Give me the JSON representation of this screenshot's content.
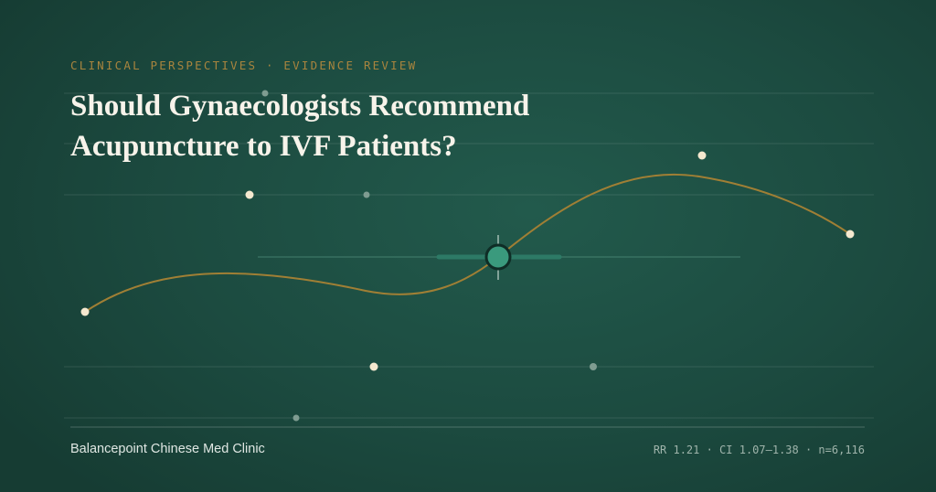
{
  "kicker": "CLINICAL PERSPECTIVES · EVIDENCE REVIEW",
  "title": "Should Gynaecologists Recommend Acupuncture to IVF Patients?",
  "footer": {
    "brand": "Balancepoint Chinese Med Clinic",
    "stats": "RR 1.21 · CI 1.07–1.38 · n=6,116"
  }
}
